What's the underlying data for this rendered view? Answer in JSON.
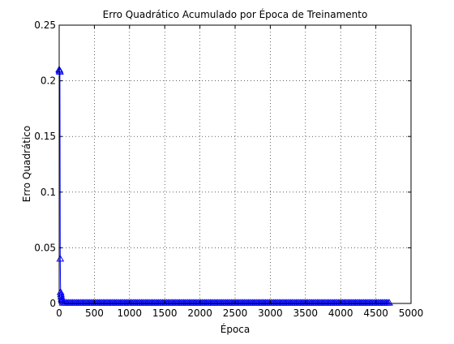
{
  "chart_data": {
    "type": "line",
    "title": "Erro Quadrático Acumulado por Época de Treinamento",
    "xlabel": "Época",
    "ylabel": "Erro Quadrático",
    "xlim": [
      0,
      5000
    ],
    "ylim": [
      0,
      0.25
    ],
    "x_ticks": [
      0,
      500,
      1000,
      1500,
      2000,
      2500,
      3000,
      3500,
      4000,
      4500,
      5000
    ],
    "x_tick_labels": [
      "0",
      "500",
      "1000",
      "1500",
      "2000",
      "2500",
      "3000",
      "3500",
      "4000",
      "4500",
      "5000"
    ],
    "y_ticks": [
      0,
      0.05,
      0.1,
      0.15,
      0.2,
      0.25
    ],
    "y_tick_labels": [
      "0",
      "0.05",
      "0.1",
      "0.15",
      "0.2",
      "0.25"
    ],
    "grid": true,
    "grid_style": "dotted",
    "legend": "none",
    "marker": "triangle-up",
    "series": [
      {
        "color": "#0000ff",
        "points": [
          {
            "x": 1,
            "y": 0.21
          },
          {
            "x": 5,
            "y": 0.209
          },
          {
            "x": 10,
            "y": 0.208
          },
          {
            "x": 15,
            "y": 0.04
          },
          {
            "x": 20,
            "y": 0.01
          },
          {
            "x": 25,
            "y": 0.008
          },
          {
            "x": 30,
            "y": 0.006
          },
          {
            "x": 35,
            "y": 0.004
          },
          {
            "x": 40,
            "y": 0.003
          },
          {
            "x": 45,
            "y": 0.002
          }
        ],
        "tail": {
          "x_start": 50,
          "x_end": 4700,
          "step": 20,
          "y": 0.0005
        }
      }
    ]
  }
}
